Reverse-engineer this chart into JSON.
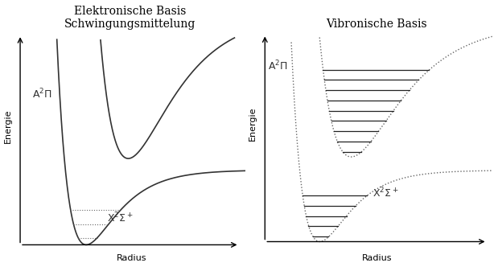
{
  "title_left": "Elektronische Basis\nSchwingungsmittelung",
  "title_right": "Vibronische Basis",
  "xlabel": "Radius",
  "ylabel": "Energie",
  "bg_color": "#ffffff",
  "curve_color": "#333333",
  "dotted_color": "#666666",
  "line_color": "#222222",
  "fontsize_title": 10,
  "fontsize_label": 8,
  "fontsize_annot": 9
}
